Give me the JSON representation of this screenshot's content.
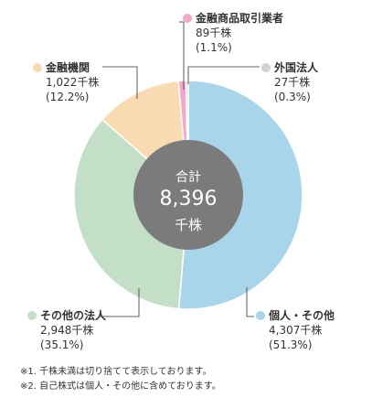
{
  "chart_data": {
    "type": "pie",
    "center_label": {
      "line1": "合計",
      "line2": "8,396",
      "line3": "千株"
    },
    "slices": [
      {
        "key": "individuals",
        "name": "個人・その他",
        "value": 4307,
        "value_text": "4,307千株",
        "pct_text": "(51.3%)",
        "color": "#a8d5ea"
      },
      {
        "key": "other_corp",
        "name": "その他の法人",
        "value": 2948,
        "value_text": "2,948千株",
        "pct_text": "(35.1%)",
        "color": "#c3dfc7"
      },
      {
        "key": "financial",
        "name": "金融機関",
        "value": 1022,
        "value_text": "1,022千株",
        "pct_text": "(12.2%)",
        "color": "#f9dbb1"
      },
      {
        "key": "securities",
        "name": "金融商品取引業者",
        "value": 89,
        "value_text": "89千株",
        "pct_text": "(1.1%)",
        "color": "#f2a8c6"
      },
      {
        "key": "foreign",
        "name": "外国法人",
        "value": 27,
        "value_text": "27千株",
        "pct_text": "(0.3%)",
        "color": "#d2d2d2"
      }
    ]
  },
  "notes": [
    "※1. 千株未満は切り捨てて表示しております。",
    "※2. 自己株式は個人・その他に含めております。"
  ]
}
